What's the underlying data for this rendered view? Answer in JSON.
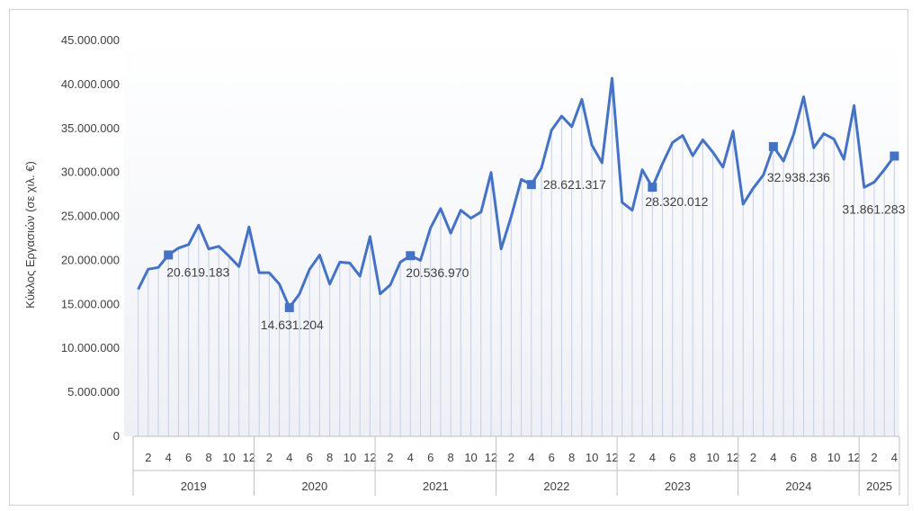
{
  "chart_data": {
    "type": "line",
    "ylabel": "Κύκλος Εργασιών (σε χιλ. €)",
    "ylim": [
      0,
      45000000
    ],
    "yticks": [
      0,
      5000000,
      10000000,
      15000000,
      20000000,
      25000000,
      30000000,
      35000000,
      40000000,
      45000000
    ],
    "ytick_labels": [
      "0",
      "5.000.000",
      "10.000.000",
      "15.000.000",
      "20.000.000",
      "25.000.000",
      "30.000.000",
      "35.000.000",
      "40.000.000",
      "45.000.000"
    ],
    "years": [
      {
        "label": "2019",
        "months": 12
      },
      {
        "label": "2020",
        "months": 12
      },
      {
        "label": "2021",
        "months": 12
      },
      {
        "label": "2022",
        "months": 12
      },
      {
        "label": "2023",
        "months": 12
      },
      {
        "label": "2024",
        "months": 12
      },
      {
        "label": "2025",
        "months": 4
      }
    ],
    "month_tick_labels": [
      "2",
      "4",
      "6",
      "8",
      "10",
      "12"
    ],
    "series": [
      {
        "color": "#4472C4",
        "values": [
          16700000,
          19000000,
          19200000,
          20619183,
          21400000,
          21800000,
          24000000,
          21300000,
          21600000,
          20500000,
          19300000,
          23800000,
          18600000,
          18600000,
          17300000,
          14631204,
          16200000,
          19000000,
          20600000,
          17300000,
          19800000,
          19700000,
          18200000,
          22700000,
          16200000,
          17200000,
          19800000,
          20536970,
          20000000,
          23700000,
          25900000,
          23100000,
          25700000,
          24800000,
          25500000,
          30000000,
          21300000,
          25000000,
          29200000,
          28621317,
          30500000,
          34800000,
          36400000,
          35200000,
          38300000,
          33100000,
          31100000,
          40700000,
          26600000,
          25700000,
          30300000,
          28320012,
          31000000,
          33400000,
          34200000,
          31900000,
          33700000,
          32300000,
          30600000,
          34700000,
          26400000,
          28200000,
          29700000,
          32938236,
          31300000,
          34300000,
          38600000,
          32800000,
          34400000,
          33800000,
          31500000,
          37600000,
          28300000,
          28900000,
          30300000,
          31861283
        ]
      }
    ],
    "annotations": [
      {
        "index": 3,
        "label": "20.619.183"
      },
      {
        "index": 15,
        "label": "14.631.204"
      },
      {
        "index": 27,
        "label": "20.536.970"
      },
      {
        "index": 39,
        "label": "28.621.317"
      },
      {
        "index": 51,
        "label": "28.320.012"
      },
      {
        "index": 63,
        "label": "32.938.236"
      },
      {
        "index": 75,
        "label": "31.861.283"
      }
    ],
    "grid": "vertical-drop-lines",
    "legend": "none"
  },
  "colors": {
    "line": "#4472C4",
    "axis": "#bfbfbf",
    "drop_line": "#c5cfe6",
    "text": "#404040"
  }
}
